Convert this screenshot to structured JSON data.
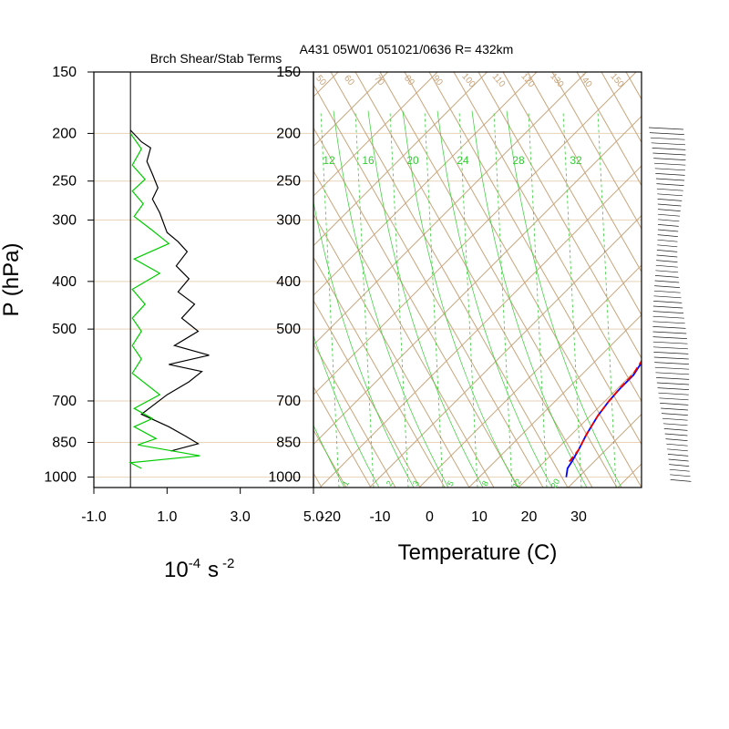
{
  "header": {
    "left_title": "Brch Shear/Stab Terms",
    "right_title": "A431 05W01 051021/0636 R= 432km"
  },
  "colors": {
    "skewt_grid": "#c8a57c",
    "pressure_lines": "#e8d2b8",
    "mixing_ratio": "#33cc33",
    "temperature": "#0000ff",
    "dewpoint": "#ee0000",
    "shear_term": "#000000",
    "stability_term": "#00cc00"
  },
  "chart_data": [
    {
      "type": "line",
      "panel": "left",
      "xlabel_base": "10",
      "xlabel_exp": "-4",
      "xlabel_unit": "s",
      "xlabel_unit_exp": "-2",
      "ylabel": "P (hPa)",
      "xlim": [
        -1.0,
        5.0
      ],
      "ylim": [
        1050,
        150
      ],
      "y_log": true,
      "x_ticks": [
        "-1.0",
        "1.0",
        "3.0",
        "5.0"
      ],
      "y_ticks": [
        "150",
        "200",
        "250",
        "300",
        "400",
        "500",
        "700",
        "850",
        "1000"
      ],
      "series": [
        {
          "color": "#000000",
          "points": [
            [
              0.0,
              197
            ],
            [
              0.3,
              208
            ],
            [
              0.55,
              214
            ],
            [
              0.45,
              228
            ],
            [
              0.6,
              242
            ],
            [
              0.75,
              258
            ],
            [
              0.6,
              272
            ],
            [
              0.8,
              290
            ],
            [
              1.0,
              318
            ],
            [
              1.3,
              332
            ],
            [
              1.55,
              348
            ],
            [
              1.25,
              372
            ],
            [
              1.6,
              395
            ],
            [
              1.3,
              420
            ],
            [
              1.75,
              445
            ],
            [
              1.4,
              475
            ],
            [
              1.85,
              505
            ],
            [
              1.2,
              540
            ],
            [
              2.15,
              565
            ],
            [
              1.05,
              590
            ],
            [
              1.95,
              610
            ],
            [
              1.6,
              640
            ],
            [
              1.0,
              680
            ],
            [
              0.3,
              745
            ],
            [
              1.05,
              790
            ],
            [
              1.5,
              825
            ],
            [
              1.85,
              855
            ],
            [
              1.1,
              885
            ]
          ]
        },
        {
          "color": "#00cc00",
          "points": [
            [
              0.0,
              200
            ],
            [
              0.3,
              215
            ],
            [
              0.05,
              232
            ],
            [
              0.4,
              248
            ],
            [
              0.05,
              262
            ],
            [
              0.35,
              278
            ],
            [
              0.1,
              295
            ],
            [
              0.6,
              315
            ],
            [
              1.05,
              335
            ],
            [
              0.1,
              360
            ],
            [
              0.8,
              385
            ],
            [
              0.05,
              415
            ],
            [
              0.4,
              445
            ],
            [
              0.05,
              475
            ],
            [
              0.3,
              505
            ],
            [
              0.05,
              540
            ],
            [
              0.3,
              575
            ],
            [
              0.05,
              615
            ],
            [
              0.8,
              680
            ],
            [
              0.1,
              725
            ],
            [
              0.6,
              760
            ],
            [
              0.1,
              790
            ],
            [
              0.7,
              835
            ],
            [
              0.2,
              860
            ],
            [
              1.9,
              905
            ],
            [
              0.0,
              935
            ],
            [
              0.3,
              960
            ]
          ]
        }
      ]
    },
    {
      "type": "line",
      "panel": "right",
      "diagram": "skew-T",
      "xlabel": "Temperature (C)",
      "xlim": [
        -23,
        41
      ],
      "ylim": [
        1050,
        150
      ],
      "y_log": true,
      "x_ticks": [
        "-20",
        "-10",
        "0",
        "10",
        "20",
        "30"
      ],
      "y_ticks": [
        "150",
        "200",
        "250",
        "300",
        "400",
        "500",
        "700",
        "850",
        "1000"
      ],
      "top_labels": [
        "12",
        "16",
        "20",
        "24",
        "28",
        "32"
      ],
      "bottom_labels": [
        "1",
        "2",
        "3",
        "5",
        "8",
        "12",
        "20"
      ],
      "dry_adiabat_labels": [
        "50",
        "60",
        "70",
        "80",
        "90",
        "100",
        "110",
        "120",
        "130",
        "140",
        "150"
      ],
      "series": [
        {
          "color": "#0000ff",
          "points": [
            [
              27.5,
              1000
            ],
            [
              26,
              960
            ],
            [
              25.5,
              930
            ],
            [
              24.5,
              880
            ],
            [
              23,
              820
            ],
            [
              21.5,
              750
            ],
            [
              20.8,
              700
            ],
            [
              20.5,
              660
            ],
            [
              20.5,
              620
            ],
            [
              19.5,
              580
            ],
            [
              18.7,
              550
            ],
            [
              18.4,
              520
            ],
            [
              18,
              490
            ],
            [
              17.6,
              450
            ],
            [
              17.2,
              420
            ],
            [
              16.8,
              390
            ],
            [
              16,
              355
            ],
            [
              14.5,
              320
            ],
            [
              13,
              290
            ],
            [
              11,
              260
            ],
            [
              9,
              240
            ],
            [
              7,
              222
            ],
            [
              5,
              208
            ],
            [
              3,
              200
            ],
            [
              1,
              190
            ]
          ]
        },
        {
          "color": "#ee0000",
          "dashed_above_hpa": 550,
          "points": [
            [
              25,
              930
            ],
            [
              24.5,
              880
            ],
            [
              23,
              820
            ],
            [
              21.5,
              750
            ],
            [
              20.8,
              700
            ],
            [
              20.4,
              660
            ],
            [
              20.3,
              620
            ],
            [
              19.3,
              580
            ],
            [
              18,
              550
            ],
            [
              17.2,
              520
            ],
            [
              16.5,
              490
            ],
            [
              15.8,
              450
            ],
            [
              15.5,
              420
            ],
            [
              15.2,
              390
            ],
            [
              14.5,
              355
            ],
            [
              13,
              320
            ],
            [
              11,
              290
            ],
            [
              9,
              265
            ],
            [
              8,
              250
            ],
            [
              6,
              235
            ],
            [
              4.5,
              225
            ],
            [
              3,
              218
            ],
            [
              1.5,
              212
            ],
            [
              0,
              210
            ]
          ]
        }
      ]
    }
  ]
}
